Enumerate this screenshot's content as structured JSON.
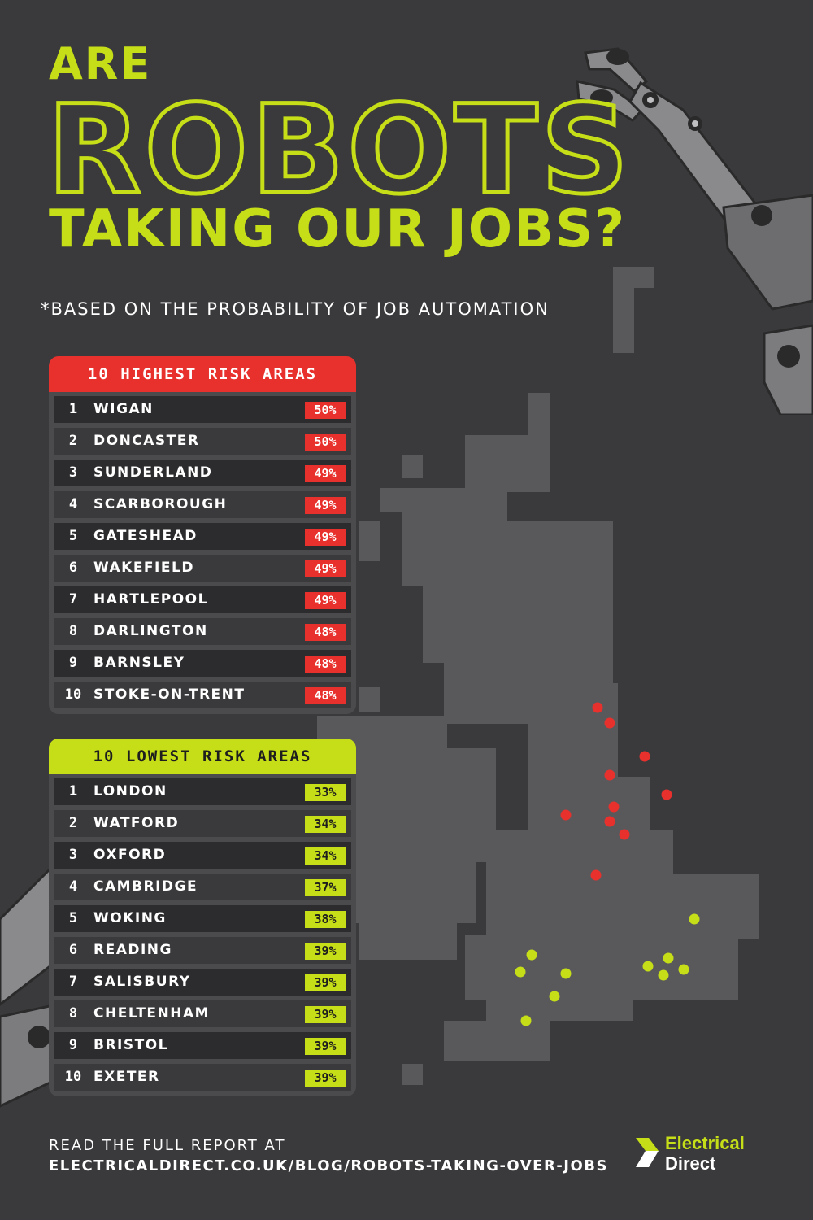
{
  "title": {
    "line1": "ARE",
    "line2": "ROBOTS",
    "line3": "TAKING OUR JOBS?"
  },
  "subtitle": "*BASED ON THE PROBABILITY OF JOB AUTOMATION",
  "highest": {
    "header": "10 HIGHEST RISK AREAS",
    "color": "#e8302d",
    "rows": [
      {
        "rank": "1",
        "city": "WIGAN",
        "pct": "50%"
      },
      {
        "rank": "2",
        "city": "DONCASTER",
        "pct": "50%"
      },
      {
        "rank": "3",
        "city": "SUNDERLAND",
        "pct": "49%"
      },
      {
        "rank": "4",
        "city": "SCARBOROUGH",
        "pct": "49%"
      },
      {
        "rank": "5",
        "city": "GATESHEAD",
        "pct": "49%"
      },
      {
        "rank": "6",
        "city": "WAKEFIELD",
        "pct": "49%"
      },
      {
        "rank": "7",
        "city": "HARTLEPOOL",
        "pct": "49%"
      },
      {
        "rank": "8",
        "city": "DARLINGTON",
        "pct": "48%"
      },
      {
        "rank": "9",
        "city": "BARNSLEY",
        "pct": "48%"
      },
      {
        "rank": "10",
        "city": "STOKE-ON-TRENT",
        "pct": "48%"
      }
    ]
  },
  "lowest": {
    "header": "10 LOWEST RISK AREAS",
    "color": "#c6de17",
    "rows": [
      {
        "rank": "1",
        "city": "LONDON",
        "pct": "33%"
      },
      {
        "rank": "2",
        "city": "WATFORD",
        "pct": "34%"
      },
      {
        "rank": "3",
        "city": "OXFORD",
        "pct": "34%"
      },
      {
        "rank": "4",
        "city": "CAMBRIDGE",
        "pct": "37%"
      },
      {
        "rank": "5",
        "city": "WOKING",
        "pct": "38%"
      },
      {
        "rank": "6",
        "city": "READING",
        "pct": "39%"
      },
      {
        "rank": "7",
        "city": "SALISBURY",
        "pct": "39%"
      },
      {
        "rank": "8",
        "city": "CHELTENHAM",
        "pct": "39%"
      },
      {
        "rank": "9",
        "city": "BRISTOL",
        "pct": "39%"
      },
      {
        "rank": "10",
        "city": "EXETER",
        "pct": "39%"
      }
    ]
  },
  "footer": {
    "line1": "READ THE FULL REPORT AT",
    "line2": "ELECTRICALDIRECT.CO.UK/BLOG/ROBOTS-TAKING-OVER-JOBS"
  },
  "logo": {
    "line1": "Electrical",
    "line2": "Direct"
  },
  "colors": {
    "background": "#3a3a3c",
    "accent_green": "#c6de17",
    "accent_red": "#e8302d",
    "map": "#59595c"
  },
  "icons": [
    "robot-arm-top-right",
    "robot-arm-bottom-left",
    "uk-pixel-map",
    "electrical-direct-logo-icon"
  ]
}
